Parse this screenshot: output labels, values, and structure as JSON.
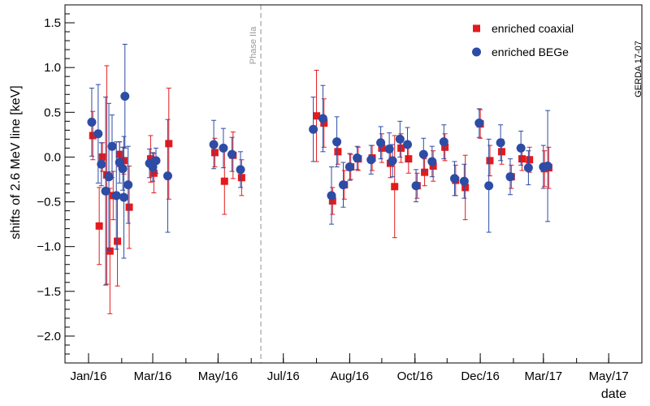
{
  "chart_data": {
    "type": "scatter",
    "title": "",
    "xlabel": "date",
    "ylabel": "shifts of 2.6 MeV line [keV]",
    "grid": false,
    "legend_position": "top-right",
    "xlim": [
      "2015-12-10",
      "2017-06-01"
    ],
    "ylim": [
      -2.3,
      1.7
    ],
    "x_ticks": [
      {
        "date": "2016-01-01",
        "label": "Jan/16"
      },
      {
        "date": "2016-03-01",
        "label": "Mar/16"
      },
      {
        "date": "2016-05-01",
        "label": "May/16"
      },
      {
        "date": "2016-07-01",
        "label": "Jul/16"
      },
      {
        "date": "2016-09-01",
        "label": "Aug/16"
      },
      {
        "date": "2016-11-01",
        "label": "Oct/16"
      },
      {
        "date": "2017-01-01",
        "label": "Dec/16"
      },
      {
        "date": "2017-03-01",
        "label": "Mar/17"
      },
      {
        "date": "2017-05-01",
        "label": "May/17"
      }
    ],
    "y_ticks": [
      {
        "value": 1.5,
        "label": "1.5"
      },
      {
        "value": 1.0,
        "label": "1.0"
      },
      {
        "value": 0.5,
        "label": "0.5"
      },
      {
        "value": 0.0,
        "label": "0.0"
      },
      {
        "value": -0.5,
        "label": "−0.5"
      },
      {
        "value": -1.0,
        "label": "−1.0"
      },
      {
        "value": -1.5,
        "label": "−1.5"
      },
      {
        "value": -2.0,
        "label": "−2.0"
      }
    ],
    "annotations": {
      "phase_marker": {
        "date": "2016-06-10",
        "text": "Phase IIa",
        "color": "#aaaaaa"
      },
      "tag": "GERDA 17-07"
    },
    "series": [
      {
        "name": "enriched coaxial",
        "marker": "square",
        "color": "#e41a1c",
        "points": [
          {
            "x": "2016-01-05",
            "y": 0.24,
            "err": 0.27
          },
          {
            "x": "2016-01-11",
            "y": -0.77,
            "err": 0.43
          },
          {
            "x": "2016-01-14",
            "y": 0.0,
            "err": 0.16
          },
          {
            "x": "2016-01-18",
            "y": -0.2,
            "err": 1.22
          },
          {
            "x": "2016-01-21",
            "y": -1.05,
            "err": 0.7
          },
          {
            "x": "2016-01-24",
            "y": -0.43,
            "err": 0.27
          },
          {
            "x": "2016-01-28",
            "y": -0.94,
            "err": 0.5
          },
          {
            "x": "2016-01-30",
            "y": 0.03,
            "err": 0.14
          },
          {
            "x": "2016-02-03",
            "y": -0.04,
            "err": 0.15
          },
          {
            "x": "2016-02-08",
            "y": -0.56,
            "err": 0.46
          },
          {
            "x": "2016-02-28",
            "y": -0.02,
            "err": 0.26
          },
          {
            "x": "2016-03-02",
            "y": -0.18,
            "err": 0.22
          },
          {
            "x": "2016-03-16",
            "y": 0.15,
            "err": 0.62
          },
          {
            "x": "2016-04-28",
            "y": 0.05,
            "err": 0.16
          },
          {
            "x": "2016-05-07",
            "y": -0.27,
            "err": 0.37
          },
          {
            "x": "2016-05-15",
            "y": 0.02,
            "err": 0.26
          },
          {
            "x": "2016-05-23",
            "y": -0.23,
            "err": 0.2
          },
          {
            "x": "2016-08-01",
            "y": 0.46,
            "err": 0.51
          },
          {
            "x": "2016-08-08",
            "y": 0.38,
            "err": 0.27
          },
          {
            "x": "2016-08-16",
            "y": -0.49,
            "err": 0.15
          },
          {
            "x": "2016-08-21",
            "y": 0.06,
            "err": 0.14
          },
          {
            "x": "2016-08-27",
            "y": -0.31,
            "err": 0.16
          },
          {
            "x": "2016-09-02",
            "y": -0.11,
            "err": 0.14
          },
          {
            "x": "2016-09-09",
            "y": -0.02,
            "err": 0.13
          },
          {
            "x": "2016-09-22",
            "y": -0.01,
            "err": 0.14
          },
          {
            "x": "2016-10-01",
            "y": 0.1,
            "err": 0.16
          },
          {
            "x": "2016-10-09",
            "y": -0.07,
            "err": 0.16
          },
          {
            "x": "2016-10-13",
            "y": -0.33,
            "err": 0.57
          },
          {
            "x": "2016-10-19",
            "y": 0.1,
            "err": 0.16
          },
          {
            "x": "2016-10-26",
            "y": -0.02,
            "err": 0.16
          },
          {
            "x": "2016-11-03",
            "y": -0.32,
            "err": 0.14
          },
          {
            "x": "2016-11-10",
            "y": -0.17,
            "err": 0.15
          },
          {
            "x": "2016-11-18",
            "y": -0.1,
            "err": 0.17
          },
          {
            "x": "2016-11-29",
            "y": 0.11,
            "err": 0.15
          },
          {
            "x": "2016-12-09",
            "y": -0.26,
            "err": 0.17
          },
          {
            "x": "2016-12-18",
            "y": -0.34,
            "err": 0.36
          },
          {
            "x": "2017-01-01",
            "y": 0.37,
            "err": 0.16
          },
          {
            "x": "2017-01-10",
            "y": -0.04,
            "err": 0.17
          },
          {
            "x": "2017-01-21",
            "y": 0.06,
            "err": 0.14
          },
          {
            "x": "2017-01-30",
            "y": -0.22,
            "err": 0.13
          },
          {
            "x": "2017-02-09",
            "y": -0.02,
            "err": 0.13
          },
          {
            "x": "2017-02-16",
            "y": -0.03,
            "err": 0.14
          },
          {
            "x": "2017-03-02",
            "y": -0.13,
            "err": 0.2
          },
          {
            "x": "2017-03-06",
            "y": -0.12,
            "err": 0.23
          }
        ]
      },
      {
        "name": "enriched BEGe",
        "marker": "circle",
        "color": "#2c4ca5",
        "points": [
          {
            "x": "2016-01-04",
            "y": 0.39,
            "err": 0.38
          },
          {
            "x": "2016-01-10",
            "y": 0.26,
            "err": 0.55
          },
          {
            "x": "2016-01-13",
            "y": -0.08,
            "err": 0.24
          },
          {
            "x": "2016-01-17",
            "y": -0.38,
            "err": 1.05
          },
          {
            "x": "2016-01-20",
            "y": -0.22,
            "err": 0.82
          },
          {
            "x": "2016-01-23",
            "y": 0.12,
            "err": 0.35
          },
          {
            "x": "2016-01-27",
            "y": -0.43,
            "err": 0.6
          },
          {
            "x": "2016-01-30",
            "y": -0.06,
            "err": 0.23
          },
          {
            "x": "2016-02-02",
            "y": -0.13,
            "err": 0.24
          },
          {
            "x": "2016-02-04",
            "y": 0.68,
            "err": 0.58
          },
          {
            "x": "2016-02-03",
            "y": -0.45,
            "err": 0.68
          },
          {
            "x": "2016-02-07",
            "y": -0.31,
            "err": 0.43
          },
          {
            "x": "2016-02-27",
            "y": -0.07,
            "err": 0.16
          },
          {
            "x": "2016-03-01",
            "y": -0.11,
            "err": 0.16
          },
          {
            "x": "2016-03-04",
            "y": -0.04,
            "err": 0.14
          },
          {
            "x": "2016-03-15",
            "y": -0.21,
            "err": 0.63
          },
          {
            "x": "2016-04-27",
            "y": 0.14,
            "err": 0.27
          },
          {
            "x": "2016-05-06",
            "y": 0.1,
            "err": 0.22
          },
          {
            "x": "2016-05-14",
            "y": 0.03,
            "err": 0.19
          },
          {
            "x": "2016-05-22",
            "y": -0.14,
            "err": 0.2
          },
          {
            "x": "2016-07-29",
            "y": 0.31,
            "err": 0.36
          },
          {
            "x": "2016-08-07",
            "y": 0.43,
            "err": 0.37
          },
          {
            "x": "2016-08-15",
            "y": -0.43,
            "err": 0.32
          },
          {
            "x": "2016-08-20",
            "y": 0.17,
            "err": 0.28
          },
          {
            "x": "2016-08-26",
            "y": -0.31,
            "err": 0.25
          },
          {
            "x": "2016-09-01",
            "y": -0.11,
            "err": 0.15
          },
          {
            "x": "2016-09-08",
            "y": -0.01,
            "err": 0.13
          },
          {
            "x": "2016-09-21",
            "y": -0.03,
            "err": 0.16
          },
          {
            "x": "2016-09-30",
            "y": 0.16,
            "err": 0.18
          },
          {
            "x": "2016-10-08",
            "y": 0.09,
            "err": 0.18
          },
          {
            "x": "2016-10-11",
            "y": -0.04,
            "err": 0.18
          },
          {
            "x": "2016-10-18",
            "y": 0.2,
            "err": 0.2
          },
          {
            "x": "2016-10-25",
            "y": 0.14,
            "err": 0.19
          },
          {
            "x": "2016-11-02",
            "y": -0.32,
            "err": 0.18
          },
          {
            "x": "2016-11-09",
            "y": 0.03,
            "err": 0.18
          },
          {
            "x": "2016-11-17",
            "y": -0.05,
            "err": 0.17
          },
          {
            "x": "2016-11-28",
            "y": 0.17,
            "err": 0.19
          },
          {
            "x": "2016-12-08",
            "y": -0.24,
            "err": 0.19
          },
          {
            "x": "2016-12-17",
            "y": -0.27,
            "err": 0.19
          },
          {
            "x": "2016-12-31",
            "y": 0.38,
            "err": 0.16
          },
          {
            "x": "2017-01-09",
            "y": -0.32,
            "err": 0.52
          },
          {
            "x": "2017-01-20",
            "y": 0.16,
            "err": 0.2
          },
          {
            "x": "2017-01-29",
            "y": -0.22,
            "err": 0.2
          },
          {
            "x": "2017-02-08",
            "y": 0.1,
            "err": 0.19
          },
          {
            "x": "2017-02-15",
            "y": -0.12,
            "err": 0.19
          },
          {
            "x": "2017-03-01",
            "y": -0.11,
            "err": 0.24
          },
          {
            "x": "2017-03-05",
            "y": -0.1,
            "err": 0.62
          }
        ]
      }
    ]
  }
}
